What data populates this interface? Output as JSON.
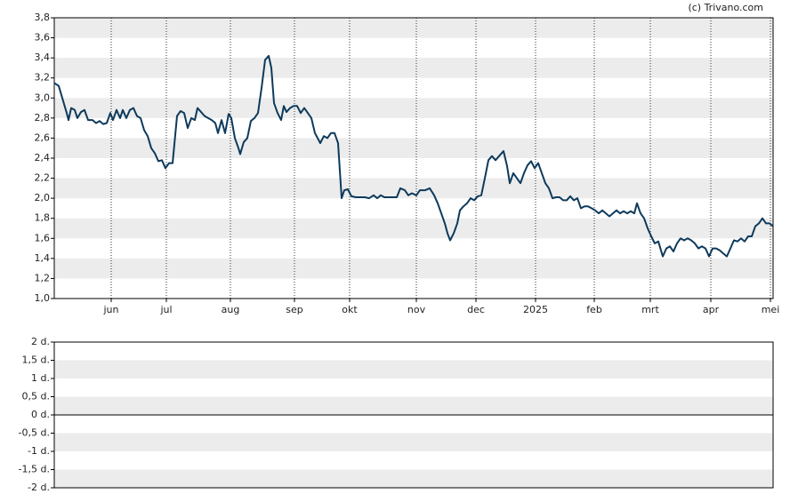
{
  "source": "(c) Trivano.com",
  "chart_data": [
    {
      "type": "line",
      "color": "#0d3a5c",
      "grid": true,
      "xlim": [
        0,
        808
      ],
      "xticks": [
        {
          "value": 64,
          "label": "jun"
        },
        {
          "value": 126,
          "label": "jul"
        },
        {
          "value": 198,
          "label": "aug"
        },
        {
          "value": 270,
          "label": "sep"
        },
        {
          "value": 332,
          "label": "okt"
        },
        {
          "value": 407,
          "label": "nov"
        },
        {
          "value": 474,
          "label": "dec"
        },
        {
          "value": 541,
          "label": "2025"
        },
        {
          "value": 607,
          "label": "feb"
        },
        {
          "value": 670,
          "label": "mrt"
        },
        {
          "value": 738,
          "label": "apr"
        },
        {
          "value": 805,
          "label": "mei"
        }
      ],
      "ylim": [
        1.0,
        3.8
      ],
      "yticks": [
        {
          "value": 1.0,
          "label": "1,0"
        },
        {
          "value": 1.2,
          "label": "1,2"
        },
        {
          "value": 1.4,
          "label": "1,4"
        },
        {
          "value": 1.6,
          "label": "1,6"
        },
        {
          "value": 1.8,
          "label": "1,8"
        },
        {
          "value": 2.0,
          "label": "2,0"
        },
        {
          "value": 2.2,
          "label": "2,2"
        },
        {
          "value": 2.4,
          "label": "2,4"
        },
        {
          "value": 2.6,
          "label": "2,6"
        },
        {
          "value": 2.8,
          "label": "2,8"
        },
        {
          "value": 3.0,
          "label": "3,0"
        },
        {
          "value": 3.2,
          "label": "3,2"
        },
        {
          "value": 3.4,
          "label": "3,4"
        },
        {
          "value": 3.6,
          "label": "3,6"
        },
        {
          "value": 3.8,
          "label": "3,8"
        }
      ],
      "x": [
        0,
        5,
        9,
        14,
        16,
        19,
        23,
        26,
        30,
        34,
        38,
        43,
        47,
        51,
        55,
        59,
        63,
        66,
        70,
        74,
        77,
        81,
        85,
        89,
        93,
        97,
        101,
        105,
        109,
        113,
        117,
        121,
        125,
        129,
        133,
        138,
        142,
        146,
        150,
        154,
        158,
        161,
        165,
        169,
        173,
        177,
        181,
        184,
        188,
        192,
        196,
        199,
        203,
        207,
        209,
        213,
        217,
        221,
        225,
        229,
        233,
        237,
        241,
        244,
        247,
        251,
        255,
        258,
        261,
        265,
        269,
        273,
        277,
        281,
        285,
        289,
        293,
        296,
        299,
        303,
        307,
        311,
        315,
        319,
        323,
        326,
        330,
        334,
        339,
        349,
        354,
        359,
        363,
        367,
        371,
        375,
        385,
        389,
        394,
        398,
        402,
        407,
        411,
        417,
        422,
        427,
        431,
        435,
        439,
        442,
        445,
        449,
        453,
        456,
        460,
        464,
        468,
        472,
        476,
        480,
        484,
        488,
        492,
        496,
        500,
        505,
        509,
        512,
        516,
        520,
        524,
        528,
        532,
        536,
        540,
        544,
        548,
        552,
        556,
        560,
        564,
        568,
        572,
        576,
        580,
        584,
        588,
        592,
        596,
        600,
        604,
        608,
        612,
        616,
        620,
        624,
        628,
        632,
        636,
        640,
        644,
        648,
        652,
        655,
        659,
        663,
        667,
        671,
        675,
        679,
        684,
        688,
        692,
        696,
        700,
        704,
        708,
        712,
        716,
        720,
        724,
        728,
        732,
        736,
        740,
        744,
        748,
        752,
        756,
        760,
        764,
        768,
        772,
        776,
        780,
        784,
        788,
        792,
        796,
        800,
        804,
        808
      ],
      "values": [
        3.15,
        3.12,
        3.0,
        2.85,
        2.78,
        2.9,
        2.88,
        2.8,
        2.86,
        2.88,
        2.78,
        2.78,
        2.75,
        2.77,
        2.74,
        2.75,
        2.85,
        2.78,
        2.88,
        2.8,
        2.88,
        2.8,
        2.88,
        2.9,
        2.82,
        2.8,
        2.68,
        2.62,
        2.5,
        2.45,
        2.37,
        2.38,
        2.3,
        2.35,
        2.35,
        2.82,
        2.87,
        2.85,
        2.7,
        2.8,
        2.78,
        2.9,
        2.86,
        2.82,
        2.8,
        2.78,
        2.75,
        2.65,
        2.78,
        2.65,
        2.84,
        2.8,
        2.6,
        2.5,
        2.44,
        2.56,
        2.6,
        2.77,
        2.8,
        2.85,
        3.1,
        3.38,
        3.42,
        3.3,
        2.95,
        2.85,
        2.78,
        2.92,
        2.86,
        2.9,
        2.92,
        2.92,
        2.85,
        2.9,
        2.85,
        2.8,
        2.65,
        2.6,
        2.55,
        2.62,
        2.6,
        2.65,
        2.65,
        2.55,
        2.0,
        2.08,
        2.09,
        2.02,
        2.01,
        2.01,
        2.0,
        2.03,
        2.0,
        2.03,
        2.01,
        2.01,
        2.01,
        2.1,
        2.08,
        2.03,
        2.05,
        2.03,
        2.08,
        2.08,
        2.1,
        2.03,
        1.95,
        1.85,
        1.75,
        1.65,
        1.58,
        1.65,
        1.75,
        1.88,
        1.92,
        1.95,
        2.0,
        1.98,
        2.02,
        2.03,
        2.2,
        2.38,
        2.42,
        2.38,
        2.42,
        2.47,
        2.32,
        2.15,
        2.25,
        2.2,
        2.15,
        2.25,
        2.33,
        2.37,
        2.3,
        2.35,
        2.25,
        2.15,
        2.1,
        2.0,
        2.01,
        2.01,
        1.98,
        1.98,
        2.02,
        1.98,
        2.0,
        1.9,
        1.92,
        1.92,
        1.9,
        1.88,
        1.85,
        1.88,
        1.85,
        1.82,
        1.85,
        1.88,
        1.85,
        1.87,
        1.85,
        1.87,
        1.85,
        1.95,
        1.85,
        1.8,
        1.7,
        1.62,
        1.55,
        1.57,
        1.42,
        1.5,
        1.52,
        1.47,
        1.55,
        1.6,
        1.58,
        1.6,
        1.58,
        1.55,
        1.5,
        1.52,
        1.5,
        1.42,
        1.5,
        1.5,
        1.48,
        1.45,
        1.42,
        1.5,
        1.58,
        1.57,
        1.6,
        1.57,
        1.62,
        1.62,
        1.72,
        1.75,
        1.8,
        1.75,
        1.75,
        1.72
      ]
    },
    {
      "type": "bar",
      "grid": true,
      "zero_line": true,
      "ylim": [
        -2,
        2
      ],
      "yticks": [
        {
          "value": -2,
          "label": "-2 d."
        },
        {
          "value": -1.5,
          "label": "-1,5 d."
        },
        {
          "value": -1,
          "label": "-1 d."
        },
        {
          "value": -0.5,
          "label": "-0,5 d."
        },
        {
          "value": 0,
          "label": "0 d."
        },
        {
          "value": 0.5,
          "label": "0,5 d."
        },
        {
          "value": 1,
          "label": "1 d."
        },
        {
          "value": 1.5,
          "label": "1,5 d."
        },
        {
          "value": 2,
          "label": "2 d."
        }
      ]
    }
  ]
}
